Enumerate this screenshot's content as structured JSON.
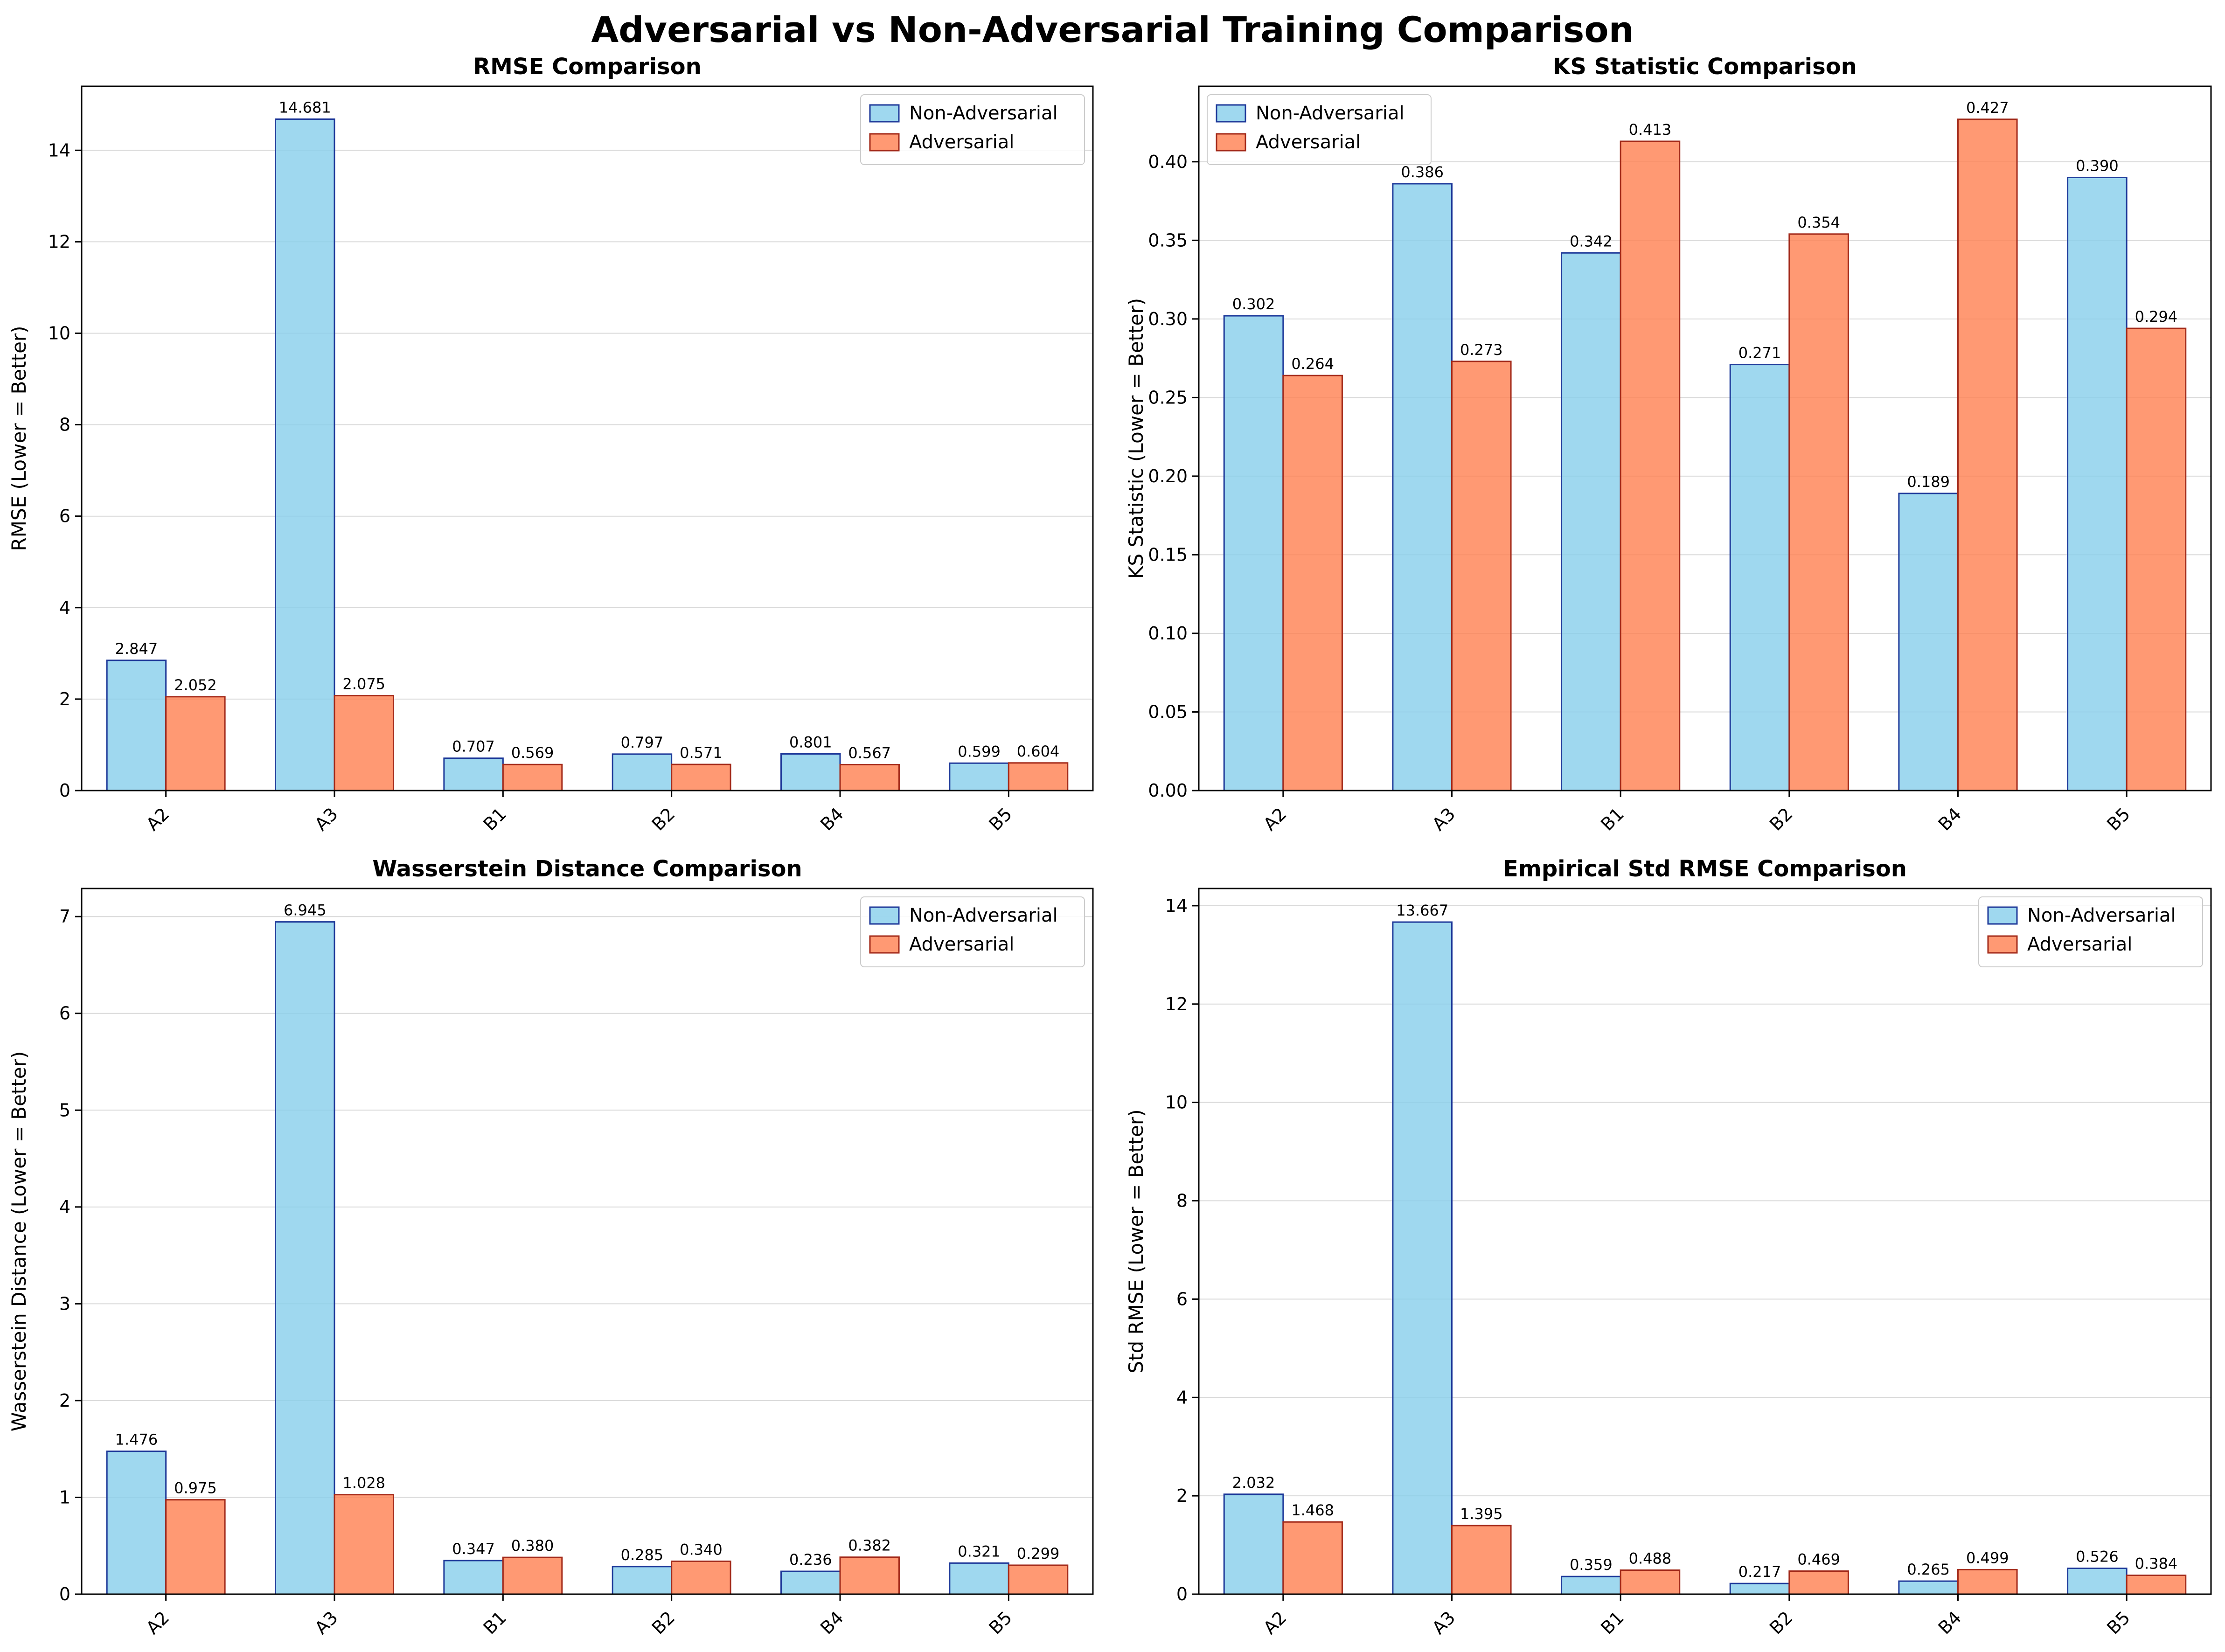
{
  "title": "Adversarial vs Non-Adversarial Training Comparison",
  "colors": {
    "non_adversarial_fill": "#87CEEB",
    "non_adversarial_edge": "#1f3a9a",
    "adversarial_fill": "#FF7F50",
    "adversarial_edge": "#a32a1a",
    "grid": "#d9d9d9"
  },
  "chart_data": [
    {
      "type": "bar",
      "title": "RMSE Comparison",
      "xlabel": "",
      "ylabel": "RMSE (Lower = Better)",
      "categories": [
        "A2",
        "A3",
        "B1",
        "B2",
        "B4",
        "B5"
      ],
      "ylim": [
        0,
        15.4
      ],
      "yticks": [
        0,
        2,
        4,
        6,
        8,
        10,
        12,
        14
      ],
      "tick_decimals": 0,
      "grid": true,
      "legend": "top-right",
      "series": [
        {
          "name": "Non-Adversarial",
          "values": [
            2.847,
            14.681,
            0.707,
            0.797,
            0.801,
            0.599
          ],
          "labels": [
            "2.847",
            "14.681",
            "0.707",
            "0.797",
            "0.801",
            "0.599"
          ]
        },
        {
          "name": "Adversarial",
          "values": [
            2.052,
            2.075,
            0.569,
            0.571,
            0.567,
            0.604
          ],
          "labels": [
            "2.052",
            "2.075",
            "0.569",
            "0.571",
            "0.567",
            "0.604"
          ]
        }
      ]
    },
    {
      "type": "bar",
      "title": "KS Statistic Comparison",
      "xlabel": "",
      "ylabel": "KS Statistic (Lower = Better)",
      "categories": [
        "A2",
        "A3",
        "B1",
        "B2",
        "B4",
        "B5"
      ],
      "ylim": [
        0,
        0.448
      ],
      "yticks": [
        0,
        0.05,
        0.1,
        0.15,
        0.2,
        0.25,
        0.3,
        0.35,
        0.4
      ],
      "tick_decimals": 2,
      "grid": true,
      "legend": "top-left",
      "series": [
        {
          "name": "Non-Adversarial",
          "values": [
            0.302,
            0.386,
            0.342,
            0.271,
            0.189,
            0.39
          ],
          "labels": [
            "0.302",
            "0.386",
            "0.342",
            "0.271",
            "0.189",
            "0.390"
          ]
        },
        {
          "name": "Adversarial",
          "values": [
            0.264,
            0.273,
            0.413,
            0.354,
            0.427,
            0.294
          ],
          "labels": [
            "0.264",
            "0.273",
            "0.413",
            "0.354",
            "0.427",
            "0.294"
          ]
        }
      ]
    },
    {
      "type": "bar",
      "title": "Wasserstein Distance Comparison",
      "xlabel": "",
      "ylabel": "Wasserstein Distance (Lower = Better)",
      "categories": [
        "A2",
        "A3",
        "B1",
        "B2",
        "B4",
        "B5"
      ],
      "ylim": [
        0,
        7.29
      ],
      "yticks": [
        0,
        1,
        2,
        3,
        4,
        5,
        6,
        7
      ],
      "tick_decimals": 0,
      "grid": true,
      "legend": "top-right",
      "series": [
        {
          "name": "Non-Adversarial",
          "values": [
            1.476,
            6.945,
            0.347,
            0.285,
            0.236,
            0.321
          ],
          "labels": [
            "1.476",
            "6.945",
            "0.347",
            "0.285",
            "0.236",
            "0.321"
          ]
        },
        {
          "name": "Adversarial",
          "values": [
            0.975,
            1.028,
            0.38,
            0.34,
            0.382,
            0.299
          ],
          "labels": [
            "0.975",
            "1.028",
            "0.380",
            "0.340",
            "0.382",
            "0.299"
          ]
        }
      ]
    },
    {
      "type": "bar",
      "title": "Empirical Std RMSE Comparison",
      "xlabel": "",
      "ylabel": "Std RMSE (Lower = Better)",
      "categories": [
        "A2",
        "A3",
        "B1",
        "B2",
        "B4",
        "B5"
      ],
      "ylim": [
        0,
        14.35
      ],
      "yticks": [
        0,
        2,
        4,
        6,
        8,
        10,
        12,
        14
      ],
      "tick_decimals": 0,
      "grid": true,
      "legend": "top-right",
      "series": [
        {
          "name": "Non-Adversarial",
          "values": [
            2.032,
            13.667,
            0.359,
            0.217,
            0.265,
            0.526
          ],
          "labels": [
            "2.032",
            "13.667",
            "0.359",
            "0.217",
            "0.265",
            "0.526"
          ]
        },
        {
          "name": "Adversarial",
          "values": [
            1.468,
            1.395,
            0.488,
            0.469,
            0.499,
            0.384
          ],
          "labels": [
            "1.468",
            "1.395",
            "0.488",
            "0.469",
            "0.499",
            "0.384"
          ]
        }
      ]
    }
  ]
}
